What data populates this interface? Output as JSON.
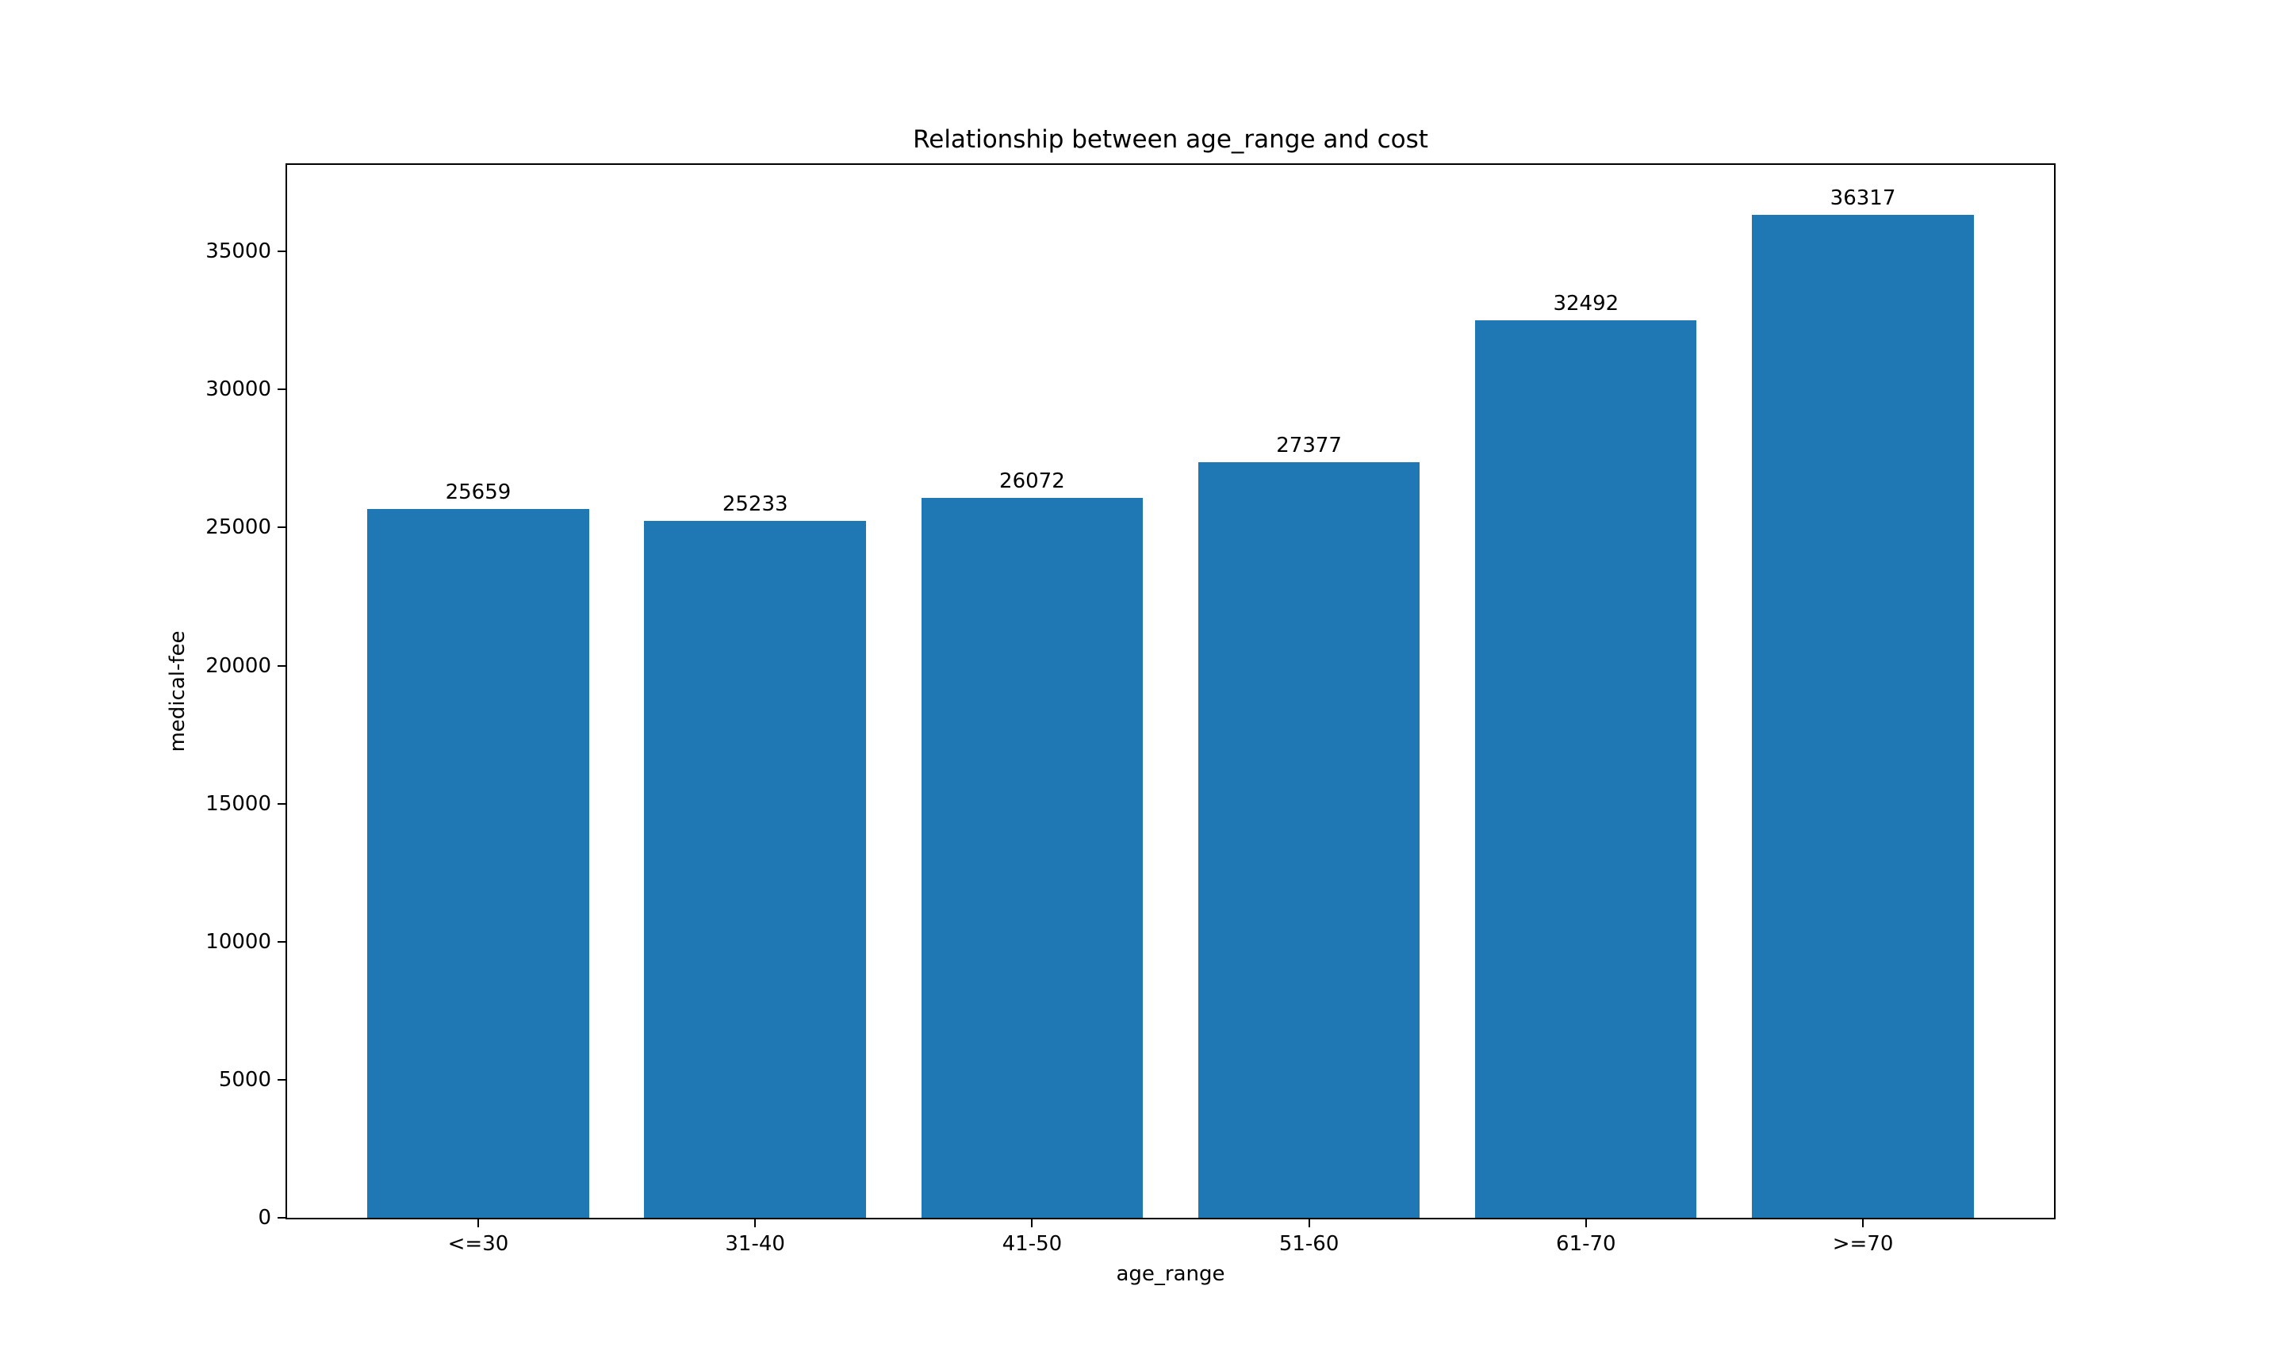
{
  "chart_data": {
    "type": "bar",
    "title": "Relationship between age_range and cost",
    "xlabel": "age_range",
    "ylabel": "medical-fee",
    "categories": [
      "<=30",
      "31-40",
      "41-50",
      "51-60",
      "61-70",
      ">=70"
    ],
    "values": [
      25659,
      25233,
      26072,
      27377,
      32492,
      36317
    ],
    "bar_value_labels": [
      "25659",
      "25233",
      "26072",
      "27377",
      "32492",
      "36317"
    ],
    "bar_color": "#1f77b4",
    "yticks": [
      0,
      5000,
      10000,
      15000,
      20000,
      25000,
      30000,
      35000
    ],
    "ylim": [
      0,
      38133
    ],
    "xlim": [
      -0.69,
      5.69
    ],
    "bar_width": 0.8,
    "grid": false,
    "legend": null,
    "background_color": "#ffffff",
    "spine_color": "#000000"
  }
}
